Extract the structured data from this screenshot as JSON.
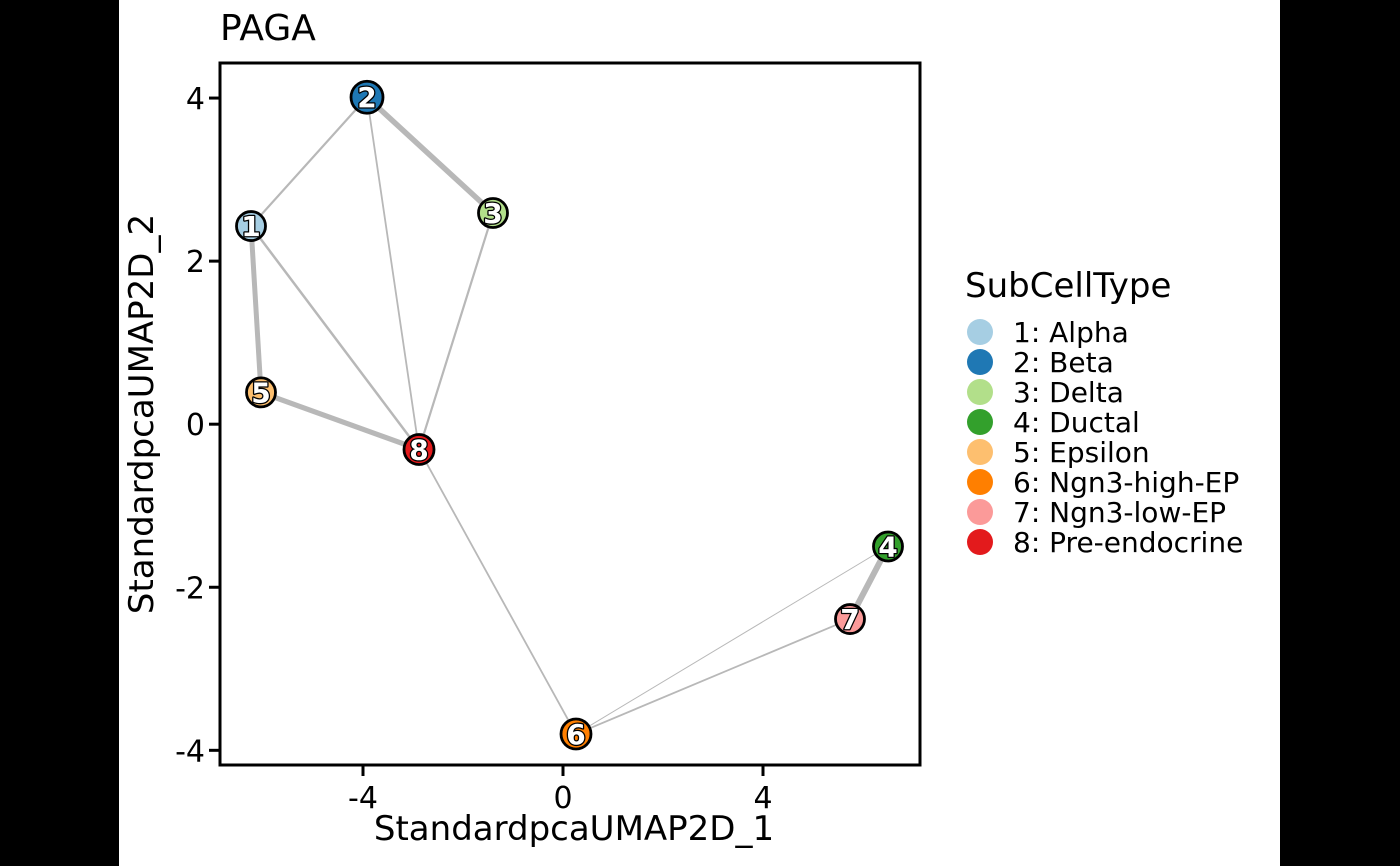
{
  "figure": {
    "outer_background": "#000000",
    "panel_background": "#ffffff"
  },
  "chart_data": {
    "type": "scatter",
    "subtype": "paga-network-graph",
    "title": "PAGA",
    "xlabel": "StandardpcaUMAP2D_1",
    "ylabel": "StandardpcaUMAP2D_2",
    "xlim": [
      -6.86,
      7.14
    ],
    "ylim": [
      -4.18,
      4.43
    ],
    "x_ticks": {
      "values": [
        -4,
        0,
        4
      ],
      "labels": [
        "-4",
        "0",
        "4"
      ]
    },
    "y_ticks": {
      "values": [
        4,
        2,
        0,
        -2,
        -4
      ],
      "labels": [
        "4",
        "2",
        "0",
        "-2",
        "-4"
      ]
    },
    "grid": false,
    "edge_color": "#b8b8b8",
    "node_border_color": "#000000",
    "nodes": [
      {
        "id": 1,
        "label": "1",
        "x": -6.24,
        "y": 2.43,
        "color": "#a6cee3",
        "r": 14.5
      },
      {
        "id": 2,
        "label": "2",
        "x": -3.92,
        "y": 4.01,
        "color": "#1f78b4",
        "r": 16
      },
      {
        "id": 3,
        "label": "3",
        "x": -1.4,
        "y": 2.59,
        "color": "#b2df8a",
        "r": 14.5
      },
      {
        "id": 4,
        "label": "4",
        "x": 6.5,
        "y": -1.5,
        "color": "#33a02c",
        "r": 14.5
      },
      {
        "id": 5,
        "label": "5",
        "x": -6.04,
        "y": 0.39,
        "color": "#fdbf6f",
        "r": 14.5
      },
      {
        "id": 6,
        "label": "6",
        "x": 0.26,
        "y": -3.8,
        "color": "#ff7f00",
        "r": 15
      },
      {
        "id": 7,
        "label": "7",
        "x": 5.74,
        "y": -2.39,
        "color": "#fb9a99",
        "r": 14.5
      },
      {
        "id": 8,
        "label": "8",
        "x": -2.88,
        "y": -0.31,
        "color": "#e31a1c",
        "r": 15
      }
    ],
    "edges": [
      {
        "source": 1,
        "target": 2,
        "width": 2.2
      },
      {
        "source": 2,
        "target": 3,
        "width": 5.5
      },
      {
        "source": 2,
        "target": 8,
        "width": 1.8
      },
      {
        "source": 1,
        "target": 5,
        "width": 5.0
      },
      {
        "source": 1,
        "target": 8,
        "width": 2.5
      },
      {
        "source": 3,
        "target": 8,
        "width": 2.2
      },
      {
        "source": 5,
        "target": 8,
        "width": 5.2
      },
      {
        "source": 6,
        "target": 8,
        "width": 1.8
      },
      {
        "source": 6,
        "target": 7,
        "width": 1.8
      },
      {
        "source": 4,
        "target": 6,
        "width": 1.0
      },
      {
        "source": 4,
        "target": 7,
        "width": 6.0
      }
    ],
    "legend_position": "right"
  },
  "legend": {
    "title": "SubCellType",
    "items": [
      {
        "label": "1: Alpha",
        "color": "#a6cee3"
      },
      {
        "label": "2: Beta",
        "color": "#1f78b4"
      },
      {
        "label": "3: Delta",
        "color": "#b2df8a"
      },
      {
        "label": "4: Ductal",
        "color": "#33a02c"
      },
      {
        "label": "5: Epsilon",
        "color": "#fdbf6f"
      },
      {
        "label": "6: Ngn3-high-EP",
        "color": "#ff7f00"
      },
      {
        "label": "7: Ngn3-low-EP",
        "color": "#fb9a99"
      },
      {
        "label": "8: Pre-endocrine",
        "color": "#e31a1c"
      }
    ]
  }
}
